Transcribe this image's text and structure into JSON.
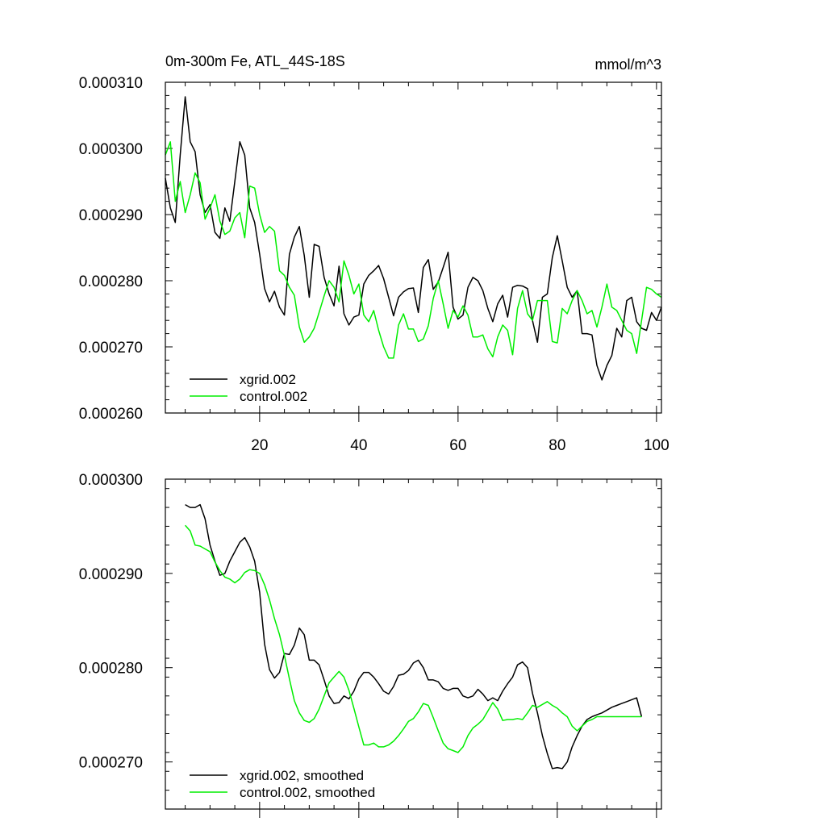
{
  "chart_data": [
    {
      "type": "line",
      "title": "0m-300m Fe, ATL_44S-18S",
      "units": "mmol/m^3",
      "xlabel": "",
      "ylabel": "",
      "xlim": [
        1,
        101
      ],
      "ylim": [
        0.00026,
        0.00031
      ],
      "xticks": [
        20,
        40,
        60,
        80,
        100
      ],
      "xtick_labels": [
        "20",
        "40",
        "60",
        "80",
        "100"
      ],
      "yticks": [
        0.00026,
        0.00027,
        0.00028,
        0.00029,
        0.0003,
        0.00031
      ],
      "ytick_labels": [
        "0.000260",
        "0.000270",
        "0.000280",
        "0.000290",
        "0.000300",
        "0.000310"
      ],
      "legend_position": "bottom-left",
      "x": [
        1,
        2,
        3,
        4,
        5,
        6,
        7,
        8,
        9,
        10,
        11,
        12,
        13,
        14,
        15,
        16,
        17,
        18,
        19,
        20,
        21,
        22,
        23,
        24,
        25,
        26,
        27,
        28,
        29,
        30,
        31,
        32,
        33,
        34,
        35,
        36,
        37,
        38,
        39,
        40,
        41,
        42,
        43,
        44,
        45,
        46,
        47,
        48,
        49,
        50,
        51,
        52,
        53,
        54,
        55,
        56,
        57,
        58,
        59,
        60,
        61,
        62,
        63,
        64,
        65,
        66,
        67,
        68,
        69,
        70,
        71,
        72,
        73,
        74,
        75,
        76,
        77,
        78,
        79,
        80,
        81,
        82,
        83,
        84,
        85,
        86,
        87,
        88,
        89,
        90,
        91,
        92,
        93,
        94,
        95,
        96,
        97,
        98,
        99,
        100,
        101
      ],
      "series": [
        {
          "name": "xgrid.002",
          "color": "#000000",
          "values": [
            0.0002955,
            0.000291,
            0.0002888,
            0.000299,
            0.0003078,
            0.000301,
            0.0002995,
            0.000293,
            0.0002903,
            0.0002915,
            0.0002873,
            0.0002864,
            0.000291,
            0.000289,
            0.000295,
            0.000301,
            0.000299,
            0.000291,
            0.0002888,
            0.000284,
            0.0002788,
            0.0002768,
            0.0002784,
            0.000276,
            0.0002748,
            0.000284,
            0.0002866,
            0.0002882,
            0.0002838,
            0.0002775,
            0.0002855,
            0.0002852,
            0.0002805,
            0.000278,
            0.0002762,
            0.0002822,
            0.000275,
            0.0002733,
            0.0002745,
            0.0002748,
            0.0002795,
            0.0002808,
            0.0002815,
            0.0002823,
            0.0002803,
            0.0002775,
            0.0002747,
            0.0002775,
            0.0002783,
            0.0002788,
            0.0002789,
            0.0002752,
            0.000282,
            0.0002832,
            0.0002787,
            0.0002798,
            0.000282,
            0.0002843,
            0.000276,
            0.0002742,
            0.0002748,
            0.000279,
            0.0002805,
            0.00028,
            0.0002785,
            0.0002758,
            0.0002738,
            0.0002765,
            0.0002778,
            0.0002745,
            0.000279,
            0.0002793,
            0.0002792,
            0.0002788,
            0.000274,
            0.0002707,
            0.0002775,
            0.000278,
            0.0002835,
            0.0002868,
            0.000283,
            0.000279,
            0.0002775,
            0.0002785,
            0.000272,
            0.000272,
            0.0002718,
            0.0002672,
            0.000265,
            0.0002672,
            0.0002687,
            0.0002728,
            0.0002715,
            0.000277,
            0.0002775,
            0.0002738,
            0.0002728,
            0.0002725,
            0.0002752,
            0.000274,
            0.000276
          ]
        },
        {
          "name": "control.002",
          "color": "#00ee00",
          "values": [
            0.000299,
            0.000301,
            0.000292,
            0.000295,
            0.0002903,
            0.000293,
            0.0002963,
            0.0002948,
            0.0002893,
            0.000291,
            0.000293,
            0.000289,
            0.000287,
            0.0002875,
            0.0002895,
            0.0002903,
            0.0002865,
            0.0002943,
            0.000294,
            0.00029,
            0.0002873,
            0.0002882,
            0.0002875,
            0.0002815,
            0.0002808,
            0.000279,
            0.0002778,
            0.000273,
            0.0002707,
            0.0002715,
            0.0002728,
            0.0002752,
            0.0002777,
            0.00028,
            0.000279,
            0.0002768,
            0.000283,
            0.0002808,
            0.000278,
            0.0002795,
            0.0002748,
            0.0002738,
            0.0002755,
            0.0002725,
            0.00027,
            0.0002683,
            0.0002683,
            0.0002733,
            0.000275,
            0.0002727,
            0.0002727,
            0.0002708,
            0.0002712,
            0.0002732,
            0.0002773,
            0.00028,
            0.0002765,
            0.0002728,
            0.0002755,
            0.0002745,
            0.0002762,
            0.0002748,
            0.0002715,
            0.0002715,
            0.0002718,
            0.0002697,
            0.0002685,
            0.0002715,
            0.0002733,
            0.0002725,
            0.0002688,
            0.0002758,
            0.0002785,
            0.000275,
            0.000274,
            0.000277,
            0.000277,
            0.000277,
            0.0002708,
            0.0002706,
            0.0002758,
            0.000275,
            0.000277,
            0.0002785,
            0.000277,
            0.000275,
            0.0002755,
            0.000273,
            0.000276,
            0.0002795,
            0.000276,
            0.0002755,
            0.000274,
            0.0002725,
            0.000272,
            0.000269,
            0.000274,
            0.000279,
            0.0002787,
            0.000278,
            0.0002775
          ]
        }
      ]
    },
    {
      "type": "line",
      "title": "",
      "xlabel": "",
      "ylabel": "",
      "xlim": [
        1,
        101
      ],
      "ylim": [
        0.000265,
        0.0003
      ],
      "xticks": [
        20,
        40,
        60,
        80,
        100
      ],
      "xtick_labels": [],
      "yticks": [
        0.00027,
        0.00028,
        0.00029,
        0.0003
      ],
      "ytick_labels": [
        "0.000270",
        "0.000280",
        "0.000290",
        "0.000300"
      ],
      "legend_position": "bottom-left",
      "x": [
        5,
        6,
        7,
        8,
        9,
        10,
        11,
        12,
        13,
        14,
        15,
        16,
        17,
        18,
        19,
        20,
        21,
        22,
        23,
        24,
        25,
        26,
        27,
        28,
        29,
        30,
        31,
        32,
        33,
        34,
        35,
        36,
        37,
        38,
        39,
        40,
        41,
        42,
        43,
        44,
        45,
        46,
        47,
        48,
        49,
        50,
        51,
        52,
        53,
        54,
        55,
        56,
        57,
        58,
        59,
        60,
        61,
        62,
        63,
        64,
        65,
        66,
        67,
        68,
        69,
        70,
        71,
        72,
        73,
        74,
        75,
        76,
        77,
        78,
        79,
        80,
        81,
        82,
        83,
        84,
        85,
        86,
        87,
        88,
        89,
        90,
        91,
        92,
        93,
        94,
        95,
        96,
        97
      ],
      "series": [
        {
          "name": "xgrid.002, smoothed",
          "color": "#000000",
          "values": [
            0.0002973,
            0.000297,
            0.000297,
            0.0002973,
            0.0002958,
            0.000293,
            0.0002913,
            0.0002898,
            0.00029,
            0.0002913,
            0.0002923,
            0.0002933,
            0.0002938,
            0.0002928,
            0.0002913,
            0.000288,
            0.0002825,
            0.0002798,
            0.0002789,
            0.0002795,
            0.0002815,
            0.0002814,
            0.0002824,
            0.0002842,
            0.0002835,
            0.0002808,
            0.0002808,
            0.0002803,
            0.0002787,
            0.000277,
            0.0002762,
            0.0002763,
            0.000277,
            0.0002767,
            0.0002775,
            0.0002788,
            0.0002795,
            0.0002795,
            0.000279,
            0.0002783,
            0.0002775,
            0.0002772,
            0.000278,
            0.0002792,
            0.0002793,
            0.0002797,
            0.0002805,
            0.0002808,
            0.00028,
            0.0002787,
            0.0002787,
            0.0002785,
            0.0002778,
            0.0002776,
            0.0002778,
            0.0002778,
            0.000277,
            0.0002768,
            0.000277,
            0.0002777,
            0.0002772,
            0.0002765,
            0.0002768,
            0.0002765,
            0.0002775,
            0.0002783,
            0.000279,
            0.0002803,
            0.0002806,
            0.00028,
            0.0002773,
            0.0002752,
            0.0002728,
            0.0002709,
            0.0002693,
            0.0002694,
            0.0002693,
            0.00027,
            0.0002716,
            0.0002728,
            0.0002738,
            0.0002745,
            0.0002748,
            0.000275,
            0.0002752,
            0.0002755,
            0.0002758,
            0.000276,
            0.0002762,
            0.0002764,
            0.0002766,
            0.0002768,
            0.0002748
          ]
        },
        {
          "name": "control.002, smoothed",
          "color": "#00ee00",
          "values": [
            0.0002951,
            0.0002945,
            0.000293,
            0.0002929,
            0.0002926,
            0.0002923,
            0.0002912,
            0.0002903,
            0.0002896,
            0.0002894,
            0.000289,
            0.0002894,
            0.0002901,
            0.0002904,
            0.0002903,
            0.00029,
            0.0002888,
            0.0002872,
            0.0002852,
            0.0002835,
            0.0002813,
            0.0002788,
            0.0002765,
            0.0002752,
            0.0002744,
            0.0002742,
            0.0002746,
            0.0002756,
            0.000277,
            0.0002784,
            0.000279,
            0.0002796,
            0.000279,
            0.0002776,
            0.0002757,
            0.0002737,
            0.0002718,
            0.0002718,
            0.000272,
            0.0002716,
            0.0002716,
            0.0002718,
            0.0002722,
            0.0002728,
            0.0002735,
            0.0002743,
            0.0002746,
            0.0002753,
            0.0002762,
            0.000276,
            0.0002747,
            0.0002733,
            0.000272,
            0.0002714,
            0.0002712,
            0.000271,
            0.0002716,
            0.0002728,
            0.0002736,
            0.000274,
            0.0002745,
            0.0002754,
            0.0002763,
            0.0002756,
            0.0002744,
            0.0002745,
            0.0002745,
            0.0002746,
            0.0002745,
            0.0002752,
            0.000276,
            0.0002758,
            0.0002761,
            0.0002764,
            0.000276,
            0.0002757,
            0.0002752,
            0.0002748,
            0.0002738,
            0.0002733,
            0.0002738,
            0.0002743,
            0.0002745,
            0.0002748,
            0.0002748,
            0.0002748,
            0.0002748,
            0.0002748,
            0.0002748,
            0.0002748,
            0.0002748,
            0.0002748,
            0.0002748
          ]
        }
      ]
    }
  ]
}
